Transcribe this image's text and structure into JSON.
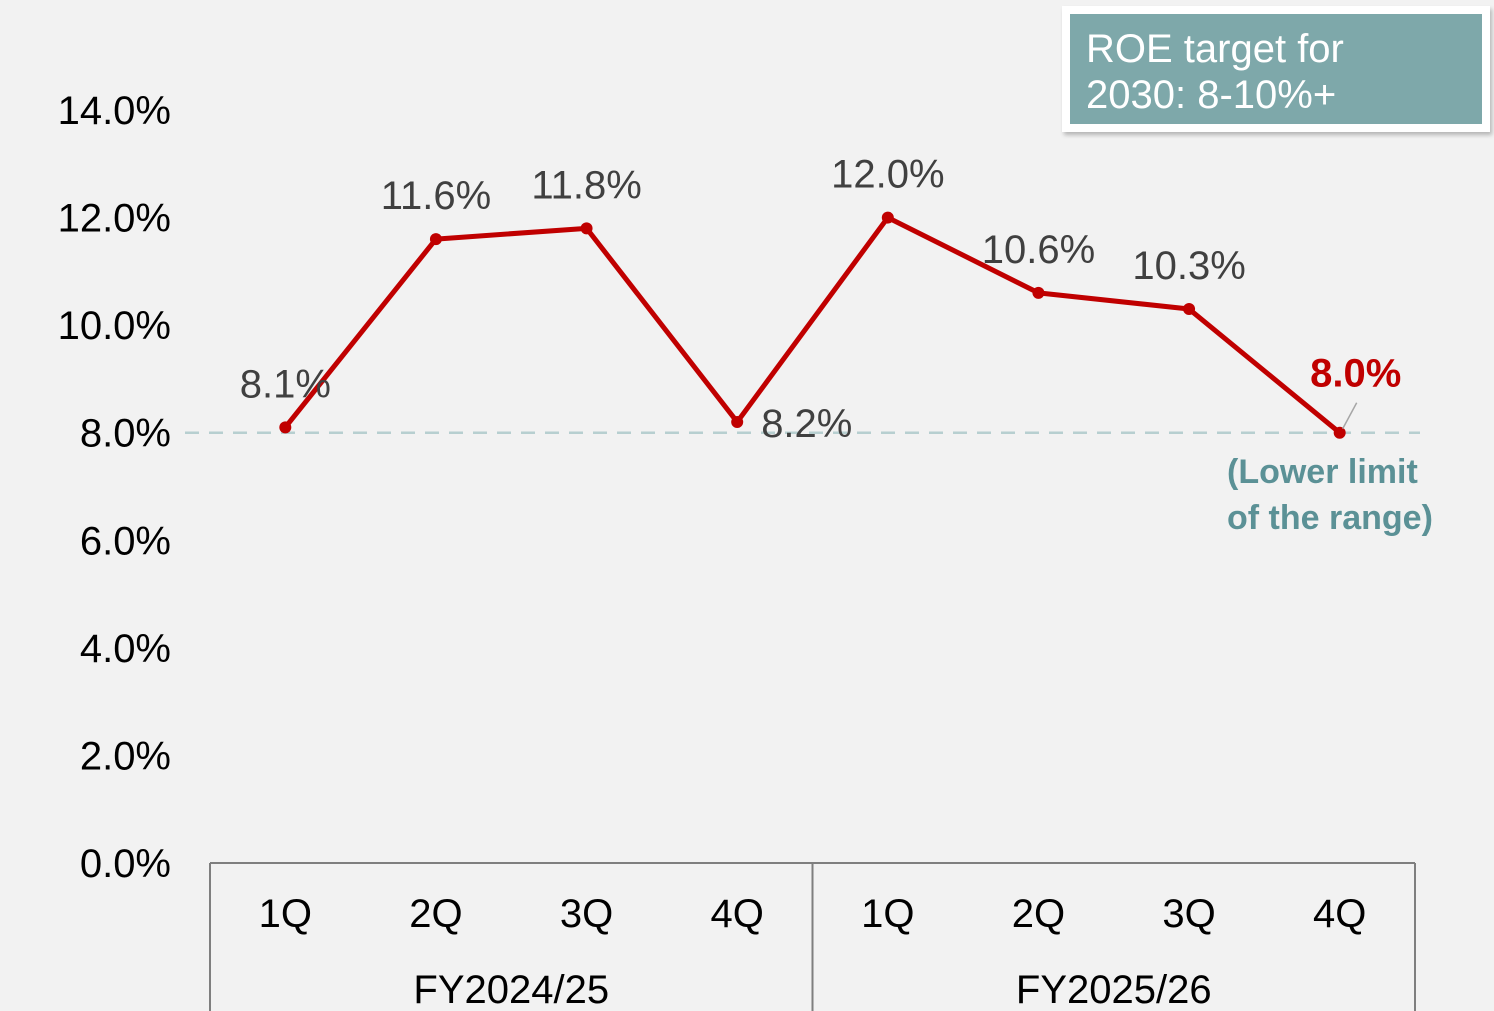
{
  "chart_data": {
    "type": "line",
    "title": "",
    "xlabel": "",
    "ylabel": "",
    "ylim": [
      0,
      14
    ],
    "y_ticks": [
      "0.0%",
      "2.0%",
      "4.0%",
      "6.0%",
      "8.0%",
      "10.0%",
      "12.0%",
      "14.0%"
    ],
    "y_tick_values": [
      0,
      2,
      4,
      6,
      8,
      10,
      12,
      14
    ],
    "categories": [
      "1Q",
      "2Q",
      "3Q",
      "4Q",
      "1Q",
      "2Q",
      "3Q",
      "4Q"
    ],
    "groups": [
      {
        "label": "FY2024/25",
        "span": 4
      },
      {
        "label": "FY2025/26",
        "span": 4
      }
    ],
    "series": [
      {
        "name": "ROE",
        "color": "#c00000",
        "values": [
          8.1,
          11.6,
          11.8,
          8.2,
          12.0,
          10.6,
          10.3,
          8.0
        ],
        "labels": [
          "8.1%",
          "11.6%",
          "11.8%",
          "8.2%",
          "12.0%",
          "10.6%",
          "10.3%",
          "8.0%"
        ]
      }
    ],
    "reference_line": {
      "value": 8.0,
      "style": "dashed",
      "color": "#b7cfd0",
      "annotation": "(Lower limit\nof the range)"
    },
    "target_box": {
      "text": "ROE target for\n2030: 8-10%+",
      "color": "#7ea8aa"
    }
  }
}
